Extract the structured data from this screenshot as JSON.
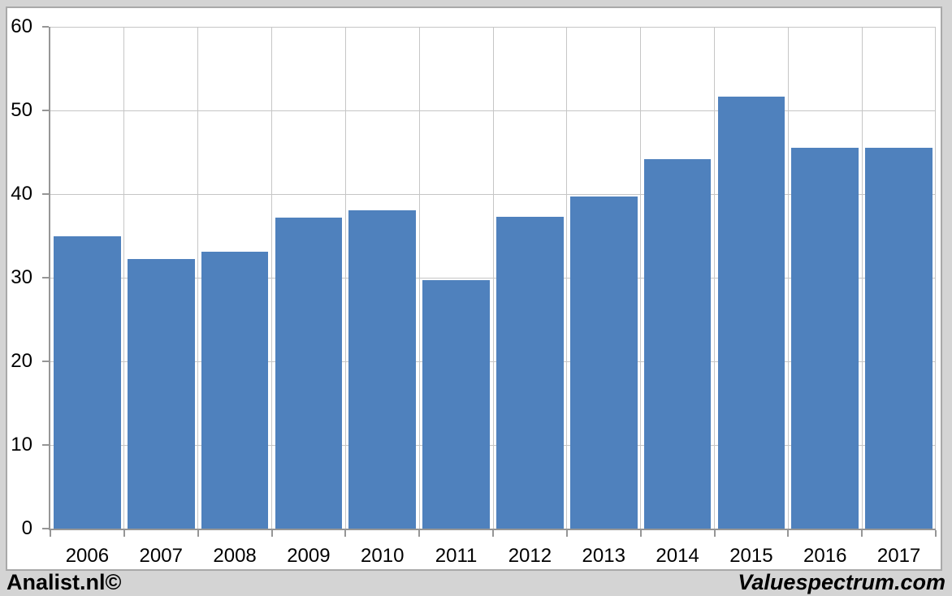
{
  "chart_data": {
    "type": "bar",
    "title": "",
    "categories": [
      "2006",
      "2007",
      "2008",
      "2009",
      "2010",
      "2011",
      "2012",
      "2013",
      "2014",
      "2015",
      "2016",
      "2017"
    ],
    "values": [
      35.0,
      32.2,
      33.1,
      37.2,
      38.1,
      29.7,
      37.3,
      39.7,
      44.2,
      51.7,
      45.5,
      45.5
    ],
    "xlabel": "",
    "ylabel": "",
    "ylim": [
      0,
      60
    ],
    "yticks": [
      0,
      10,
      20,
      30,
      40,
      50,
      60
    ],
    "grid": "on",
    "legend": "none"
  },
  "colors": {
    "bar": "#4F81BD",
    "frame_background": "#D4D4D4",
    "chart_background": "#FFFFFF",
    "chart_border": "#A9A9A9",
    "gridline": "#C6C6C6",
    "axis": "#969696",
    "text": "#000000"
  },
  "footer": {
    "left_brand": "Analist.nl©",
    "right_brand": "Valuespectrum.com"
  }
}
